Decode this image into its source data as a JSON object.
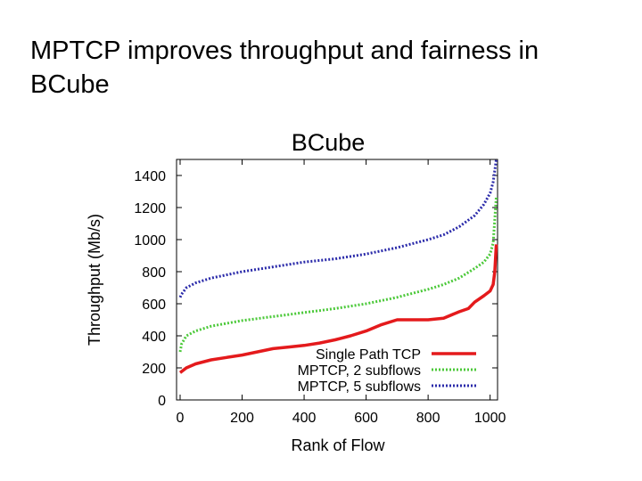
{
  "slide": {
    "title": "MPTCP improves throughput and fairness in BCube"
  },
  "chart_data": {
    "type": "line",
    "title": "BCube",
    "xlabel": "Rank of Flow",
    "ylabel": "Throughput (Mb/s)",
    "xlim": [
      0,
      1024
    ],
    "ylim": [
      0,
      1500
    ],
    "xticks": [
      "0",
      "200",
      "400",
      "600",
      "800",
      "1000"
    ],
    "yticks": [
      "0",
      "200",
      "400",
      "600",
      "800",
      "1000",
      "1200",
      "1400"
    ],
    "grid": false,
    "legend_position": "bottom-right",
    "series": [
      {
        "name": "Single Path TCP",
        "color": "#e41a1c",
        "style": "solid",
        "x": [
          0,
          20,
          50,
          100,
          150,
          200,
          250,
          300,
          350,
          400,
          450,
          500,
          550,
          600,
          650,
          700,
          750,
          800,
          850,
          900,
          930,
          950,
          980,
          1000,
          1010,
          1015,
          1020
        ],
        "values": [
          170,
          200,
          225,
          250,
          265,
          280,
          300,
          320,
          330,
          340,
          355,
          375,
          400,
          430,
          470,
          500,
          500,
          500,
          510,
          550,
          570,
          610,
          650,
          680,
          720,
          800,
          970
        ]
      },
      {
        "name": "MPTCP, 2 subflows",
        "color": "#4cc93a",
        "style": "dotted",
        "x": [
          0,
          5,
          20,
          50,
          100,
          200,
          300,
          400,
          500,
          600,
          700,
          800,
          850,
          900,
          950,
          980,
          1000,
          1010,
          1020
        ],
        "values": [
          300,
          350,
          400,
          430,
          460,
          495,
          520,
          545,
          570,
          600,
          640,
          690,
          720,
          760,
          820,
          860,
          910,
          980,
          1270
        ]
      },
      {
        "name": "MPTCP, 5 subflows",
        "color": "#2b2baa",
        "style": "dotted",
        "x": [
          0,
          5,
          20,
          50,
          100,
          200,
          300,
          400,
          500,
          600,
          700,
          800,
          850,
          900,
          950,
          980,
          1000,
          1010,
          1020
        ],
        "values": [
          640,
          660,
          700,
          730,
          760,
          800,
          830,
          860,
          880,
          910,
          950,
          1000,
          1030,
          1080,
          1150,
          1220,
          1290,
          1360,
          1500
        ]
      }
    ]
  }
}
